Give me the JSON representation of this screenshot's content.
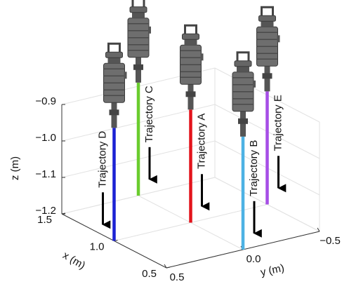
{
  "chart_data": {
    "type": "line3d",
    "xlabel": "x (m)",
    "ylabel": "y (m)",
    "zlabel": "z (m)",
    "xlim": [
      0.5,
      1.5
    ],
    "xticks": [
      0.5,
      {
        "value": 1,
        "label": "1.0"
      },
      1.5
    ],
    "ylim": [
      -0.5,
      0.5
    ],
    "yticks": [
      {
        "value": -0.5,
        "label": "−0.5"
      },
      {
        "value": 0,
        "label": "0.0"
      },
      0.5
    ],
    "zlim": [
      -1.2,
      -0.9
    ],
    "zticks": [
      {
        "value": -0.9,
        "label": "−0.9"
      },
      {
        "value": -1.0,
        "label": "−1.0"
      },
      {
        "value": -1.1,
        "label": "−1.1"
      },
      {
        "value": -1.2,
        "label": "−1.2"
      }
    ],
    "grid": true,
    "series": [
      {
        "name": "Trajectory A",
        "color": "#e3131b",
        "x": [
          1.0,
          1.0
        ],
        "y": [
          0.0,
          0.0
        ],
        "z": [
          -1.2,
          -0.89
        ]
      },
      {
        "name": "Trajectory B",
        "color": "#4db2e4",
        "x": [
          0.5,
          0.5
        ],
        "y": [
          0.0,
          0.0
        ],
        "z": [
          -1.2,
          -0.89
        ]
      },
      {
        "name": "Trajectory C",
        "color": "#6acc2e",
        "x": [
          1.5,
          1.5
        ],
        "y": [
          0.0,
          0.0
        ],
        "z": [
          -1.2,
          -0.89
        ]
      },
      {
        "name": "Trajectory D",
        "color": "#1c22d4",
        "x": [
          1.0,
          1.0
        ],
        "y": [
          0.5,
          0.5
        ],
        "z": [
          -1.2,
          -0.89
        ]
      },
      {
        "name": "Trajectory E",
        "color": "#a64ee6",
        "x": [
          1.0,
          1.0
        ],
        "y": [
          -0.5,
          -0.5
        ],
        "z": [
          -1.2,
          -0.89
        ]
      }
    ]
  }
}
